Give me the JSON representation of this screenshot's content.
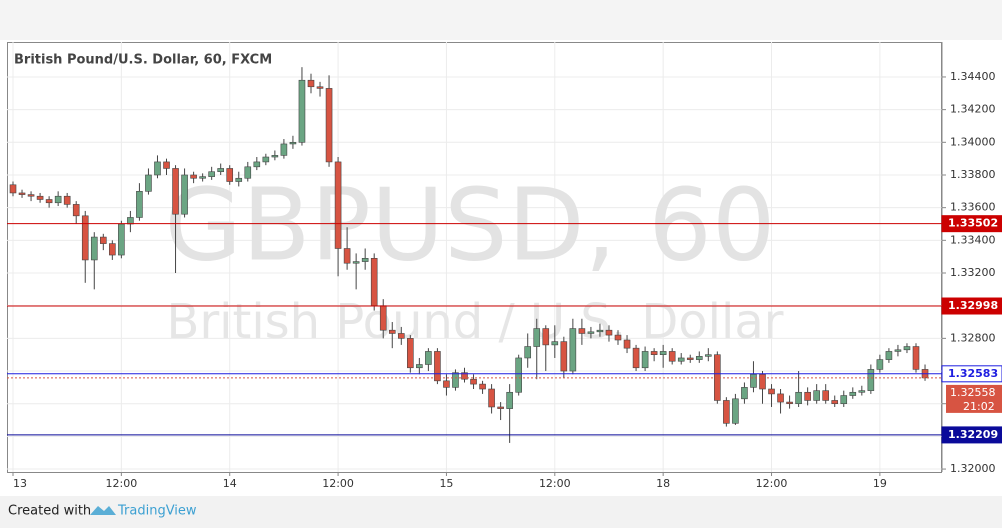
{
  "chart_data": {
    "type": "candlestick",
    "title": "British Pound/U.S. Dollar, 60, FXCM",
    "watermark": "GBPUSD, 60",
    "watermark_subtitle": "British Pound / U.S. Dollar",
    "categories": [
      "13",
      null,
      null,
      null,
      null,
      null,
      null,
      null,
      null,
      null,
      null,
      null,
      "12:00",
      null,
      null,
      null,
      null,
      null,
      null,
      null,
      null,
      null,
      null,
      null,
      "14",
      null,
      null,
      null,
      null,
      null,
      null,
      null,
      null,
      null,
      null,
      null,
      "12:00",
      null,
      null,
      null,
      null,
      null,
      null,
      null,
      null,
      null,
      null,
      null,
      "15",
      null,
      null,
      null,
      null,
      null,
      null,
      null,
      null,
      null,
      null,
      null,
      "12:00",
      null,
      null,
      null,
      null,
      null,
      null,
      null,
      null,
      null,
      null,
      null,
      "18",
      null,
      null,
      null,
      null,
      null,
      null,
      null,
      null,
      null,
      null,
      null,
      "12:00",
      null,
      null,
      null,
      null,
      null,
      null,
      null,
      null,
      null,
      null,
      null,
      "19",
      null,
      null,
      null,
      null,
      null
    ],
    "open": [
      1.3374,
      1.3369,
      1.3368,
      1.3367,
      1.3365,
      1.3363,
      1.3367,
      1.3362,
      1.3355,
      1.3328,
      1.3342,
      1.3338,
      1.3331,
      1.335,
      1.3354,
      1.337,
      1.338,
      1.3388,
      1.3384,
      1.3356,
      1.338,
      1.3378,
      1.3379,
      1.3382,
      1.3384,
      1.3376,
      1.3378,
      1.3385,
      1.3388,
      1.3391,
      1.3392,
      1.3399,
      1.34,
      1.3438,
      1.3434,
      1.3433,
      1.3388,
      1.3335,
      1.3326,
      1.3327,
      1.3329,
      1.33,
      1.3285,
      1.3283,
      1.328,
      1.3262,
      1.3264,
      1.3272,
      1.3254,
      1.325,
      1.3259,
      1.3255,
      1.3252,
      1.3249,
      1.3238,
      1.3237,
      1.3247,
      1.3268,
      1.3275,
      1.3286,
      1.3276,
      1.3278,
      1.326,
      1.3286,
      1.3283,
      1.3284,
      1.3285,
      1.3282,
      1.3279,
      1.3274,
      1.3262,
      1.3272,
      1.327,
      1.3272,
      1.3266,
      1.3268,
      1.3267,
      1.3269,
      1.327,
      1.3242,
      1.3228,
      1.3243,
      1.325,
      1.3258,
      1.3249,
      1.3246,
      1.3241,
      1.324,
      1.3247,
      1.3242,
      1.3248,
      1.3242,
      1.324,
      1.3245,
      1.3247,
      1.3248,
      1.3261,
      1.3267,
      1.3272,
      1.3273,
      1.3275,
      1.3261
    ],
    "high": [
      1.3376,
      1.3371,
      1.337,
      1.3369,
      1.3367,
      1.337,
      1.3369,
      1.3364,
      1.3358,
      1.3345,
      1.3344,
      1.334,
      1.3352,
      1.3358,
      1.3375,
      1.3384,
      1.3392,
      1.339,
      1.3386,
      1.3384,
      1.3382,
      1.3381,
      1.3385,
      1.3387,
      1.3386,
      1.3382,
      1.3388,
      1.3391,
      1.3393,
      1.3395,
      1.3402,
      1.3404,
      1.3446,
      1.3442,
      1.3437,
      1.3441,
      1.3391,
      1.3348,
      1.3332,
      1.3335,
      1.3332,
      1.3304,
      1.329,
      1.3287,
      1.3282,
      1.3268,
      1.3274,
      1.3274,
      1.3258,
      1.3261,
      1.3262,
      1.3258,
      1.3254,
      1.3252,
      1.3241,
      1.3252,
      1.327,
      1.3283,
      1.3292,
      1.3288,
      1.3288,
      1.3281,
      1.3292,
      1.3292,
      1.3287,
      1.3289,
      1.3288,
      1.3285,
      1.3282,
      1.3276,
      1.3275,
      1.3274,
      1.3276,
      1.3274,
      1.3271,
      1.327,
      1.3272,
      1.3274,
      1.3272,
      1.3244,
      1.3246,
      1.3253,
      1.3266,
      1.326,
      1.3252,
      1.3249,
      1.3245,
      1.326,
      1.325,
      1.3252,
      1.3252,
      1.3245,
      1.3248,
      1.325,
      1.3251,
      1.3264,
      1.327,
      1.3274,
      1.3276,
      1.3277,
      1.3277,
      1.3264
    ],
    "low": [
      1.3367,
      1.3366,
      1.3364,
      1.3363,
      1.336,
      1.3361,
      1.336,
      1.335,
      1.3314,
      1.331,
      1.3334,
      1.3328,
      1.3329,
      1.3345,
      1.3352,
      1.3368,
      1.3378,
      1.338,
      1.332,
      1.3354,
      1.3375,
      1.3376,
      1.3377,
      1.338,
      1.3374,
      1.3373,
      1.3376,
      1.3383,
      1.3386,
      1.3389,
      1.339,
      1.3396,
      1.3398,
      1.343,
      1.3428,
      1.3385,
      1.3318,
      1.3322,
      1.331,
      1.3322,
      1.3297,
      1.328,
      1.3274,
      1.3276,
      1.3259,
      1.3258,
      1.326,
      1.3252,
      1.3245,
      1.3248,
      1.3253,
      1.3249,
      1.3246,
      1.3234,
      1.323,
      1.3216,
      1.3245,
      1.3262,
      1.3255,
      1.326,
      1.3268,
      1.3256,
      1.3258,
      1.3276,
      1.328,
      1.3281,
      1.3278,
      1.3276,
      1.3271,
      1.326,
      1.326,
      1.3266,
      1.3262,
      1.3264,
      1.3264,
      1.3265,
      1.3265,
      1.3266,
      1.324,
      1.3226,
      1.3227,
      1.324,
      1.3247,
      1.324,
      1.3238,
      1.3234,
      1.3237,
      1.3238,
      1.3239,
      1.324,
      1.324,
      1.3238,
      1.3238,
      1.3243,
      1.3245,
      1.3246,
      1.3259,
      1.3265,
      1.3269,
      1.3271,
      1.3259,
      1.3254
    ],
    "close": [
      1.3369,
      1.3368,
      1.3367,
      1.3365,
      1.3363,
      1.3367,
      1.3362,
      1.3355,
      1.3328,
      1.3342,
      1.3338,
      1.3331,
      1.335,
      1.3354,
      1.337,
      1.338,
      1.3388,
      1.3384,
      1.3356,
      1.338,
      1.3378,
      1.3379,
      1.3382,
      1.3384,
      1.3376,
      1.3378,
      1.3385,
      1.3388,
      1.3391,
      1.3392,
      1.3399,
      1.34,
      1.3438,
      1.3434,
      1.3433,
      1.3388,
      1.3335,
      1.3326,
      1.3327,
      1.3329,
      1.33,
      1.3285,
      1.3283,
      1.328,
      1.3262,
      1.3264,
      1.3272,
      1.3254,
      1.325,
      1.3259,
      1.3255,
      1.3252,
      1.3249,
      1.3238,
      1.3237,
      1.3247,
      1.3268,
      1.3275,
      1.3286,
      1.3276,
      1.3278,
      1.326,
      1.3286,
      1.3283,
      1.3284,
      1.3285,
      1.3282,
      1.3279,
      1.3274,
      1.3262,
      1.3272,
      1.327,
      1.3272,
      1.3266,
      1.3268,
      1.3267,
      1.3269,
      1.327,
      1.3242,
      1.3228,
      1.3243,
      1.325,
      1.3258,
      1.3249,
      1.3246,
      1.3241,
      1.324,
      1.3247,
      1.3242,
      1.3248,
      1.3242,
      1.324,
      1.3245,
      1.3247,
      1.3248,
      1.3261,
      1.3267,
      1.3272,
      1.3273,
      1.3275,
      1.3261,
      1.32558
    ],
    "up_color": "#6ba583",
    "down_color": "#d75442",
    "ylim": [
      1.31982,
      1.34614
    ],
    "yticks": [
      {
        "value": 1.344,
        "label": "1.34400"
      },
      {
        "value": 1.342,
        "label": "1.34200"
      },
      {
        "value": 1.34,
        "label": "1.34000"
      },
      {
        "value": 1.338,
        "label": "1.33800"
      },
      {
        "value": 1.336,
        "label": "1.33600"
      },
      {
        "value": 1.334,
        "label": "1.33400"
      },
      {
        "value": 1.332,
        "label": "1.33200"
      },
      {
        "value": 1.33,
        "label": "1.33000"
      },
      {
        "value": 1.328,
        "label": "1.32800"
      },
      {
        "value": 1.326,
        "label": "1.32600"
      },
      {
        "value": 1.324,
        "label": "1.32400"
      },
      {
        "value": 1.322,
        "label": "1.32200"
      },
      {
        "value": 1.32,
        "label": "1.32000"
      }
    ],
    "grid": true,
    "levels": [
      {
        "value": 1.33502,
        "color": "#cc0000"
      },
      {
        "value": 1.32998,
        "color": "#cc0000"
      },
      {
        "value": 1.32583,
        "color": "#1e1ee0"
      },
      {
        "value": 1.32209,
        "color": "#0a0a9a"
      }
    ],
    "last_price": {
      "value": 1.32558,
      "countdown": "21:02",
      "color": "#d75442"
    }
  },
  "footer": {
    "text": "Created with",
    "brand": "TradingView"
  }
}
